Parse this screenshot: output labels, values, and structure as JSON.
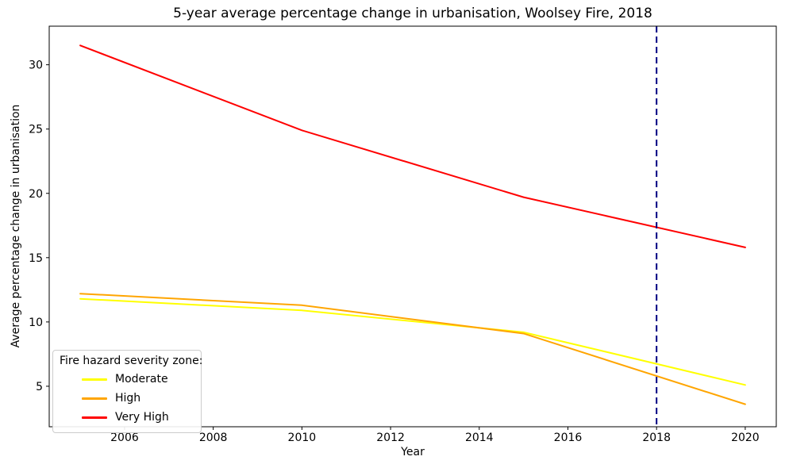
{
  "chart_data": {
    "type": "line",
    "title": "5-year average percentage change in urbanisation, Woolsey Fire, 2018",
    "xlabel": "Year",
    "ylabel": "Average percentage change in urbanisation",
    "x": [
      2005,
      2010,
      2015,
      2020
    ],
    "series": [
      {
        "name": "Moderate",
        "color": "#ffff00",
        "values": [
          11.8,
          10.9,
          9.2,
          5.1
        ]
      },
      {
        "name": "High",
        "color": "#ffa500",
        "values": [
          12.2,
          11.3,
          9.1,
          3.6
        ]
      },
      {
        "name": "Very High",
        "color": "#ff0000",
        "values": [
          31.5,
          24.9,
          19.7,
          15.8
        ]
      }
    ],
    "vline": {
      "x": 2018,
      "color": "#000080",
      "style": "dashed"
    },
    "xticks": [
      2006,
      2008,
      2010,
      2012,
      2014,
      2016,
      2018,
      2020
    ],
    "yticks": [
      5,
      10,
      15,
      20,
      25,
      30
    ],
    "xlim": [
      2004.3,
      2020.7
    ],
    "ylim": [
      1.85,
      33.0
    ],
    "grid": false,
    "legend": {
      "title": "Fire hazard severity zone:",
      "position": "lower left",
      "entries": [
        "Moderate",
        "High",
        "Very High"
      ]
    }
  }
}
